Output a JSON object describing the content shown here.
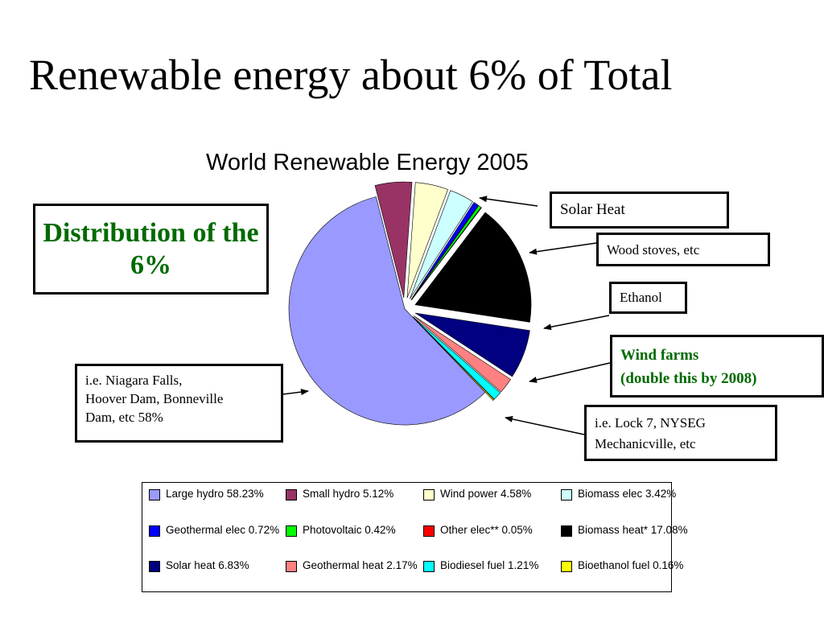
{
  "slide": {
    "title": "Renewable energy about 6% of Total"
  },
  "chart_data": {
    "type": "pie",
    "title": "World Renewable Energy 2005",
    "slices": [
      {
        "name": "Large hydro",
        "label": "Large hydro 58.23%",
        "value": 58.23,
        "color": "#9999ff",
        "explode": 0
      },
      {
        "name": "Small hydro",
        "label": "Small hydro 5.12%",
        "value": 5.12,
        "color": "#993366",
        "explode": 14
      },
      {
        "name": "Wind power",
        "label": "Wind power 4.58%",
        "value": 4.58,
        "color": "#ffffcc",
        "explode": 14
      },
      {
        "name": "Biomass elec",
        "label": "Biomass elec 3.42%",
        "value": 3.42,
        "color": "#ccffff",
        "explode": 14
      },
      {
        "name": "Geothermal elec",
        "label": "Geothermal elec 0.72%",
        "value": 0.72,
        "color": "#0000ff",
        "explode": 14
      },
      {
        "name": "Photovoltaic",
        "label": "Photovoltaic 0.42%",
        "value": 0.42,
        "color": "#00ff00",
        "explode": 14
      },
      {
        "name": "Other elec**",
        "label": "Other elec** 0.05%",
        "value": 0.05,
        "color": "#ff0000",
        "explode": 14
      },
      {
        "name": "Biomass heat*",
        "label": "Biomass heat* 17.08%",
        "value": 17.08,
        "color": "#000000",
        "explode": 14
      },
      {
        "name": "Solar heat",
        "label": "Solar heat 6.83%",
        "value": 6.83,
        "color": "#000080",
        "explode": 14
      },
      {
        "name": "Geothermal heat",
        "label": "Geothermal heat 2.17%",
        "value": 2.17,
        "color": "#ff8080",
        "explode": 14
      },
      {
        "name": "Biodiesel fuel",
        "label": "Biodiesel fuel 1.21%",
        "value": 1.21,
        "color": "#00ffff",
        "explode": 14
      },
      {
        "name": "Bioethanol fuel",
        "label": "Bioethanol fuel 0.16%",
        "value": 0.16,
        "color": "#ffff00",
        "explode": 14
      }
    ],
    "legend_placement": "bottom"
  },
  "legend": [
    {
      "text": "Large hydro 58.23%",
      "color": "#9999ff"
    },
    {
      "text": "Small hydro 5.12%",
      "color": "#993366"
    },
    {
      "text": "Wind power 4.58%",
      "color": "#ffffcc"
    },
    {
      "text": "Biomass elec 3.42%",
      "color": "#ccffff"
    },
    {
      "text": "Geothermal elec 0.72%",
      "color": "#0000ff"
    },
    {
      "text": "Photovoltaic 0.42%",
      "color": "#00ff00"
    },
    {
      "text": "Other elec** 0.05%",
      "color": "#ff0000"
    },
    {
      "text": "Biomass heat* 17.08%",
      "color": "#000000"
    },
    {
      "text": "Solar heat 6.83%",
      "color": "#000080"
    },
    {
      "text": "Geothermal heat 2.17%",
      "color": "#ff8080"
    },
    {
      "text": "Biodiesel fuel 1.21%",
      "color": "#00ffff"
    },
    {
      "text": "Bioethanol fuel 0.16%",
      "color": "#ffff00"
    }
  ],
  "callouts": {
    "distribution": "Distribution of the 6%",
    "niagara": "i.e. Niagara Falls,\nHoover Dam, Bonneville\nDam, etc  58%",
    "solar_heat": "Solar Heat",
    "wood_stoves": "Wood stoves, etc",
    "ethanol": "Ethanol",
    "wind_farms_line1": "Wind farms",
    "wind_farms_line2": "(double this by 2008)",
    "lock7_line1": "i.e. Lock 7, NYSEG",
    "lock7_line2": "Mechanicville, etc"
  },
  "colors": {
    "callout_green": "#006a00"
  }
}
